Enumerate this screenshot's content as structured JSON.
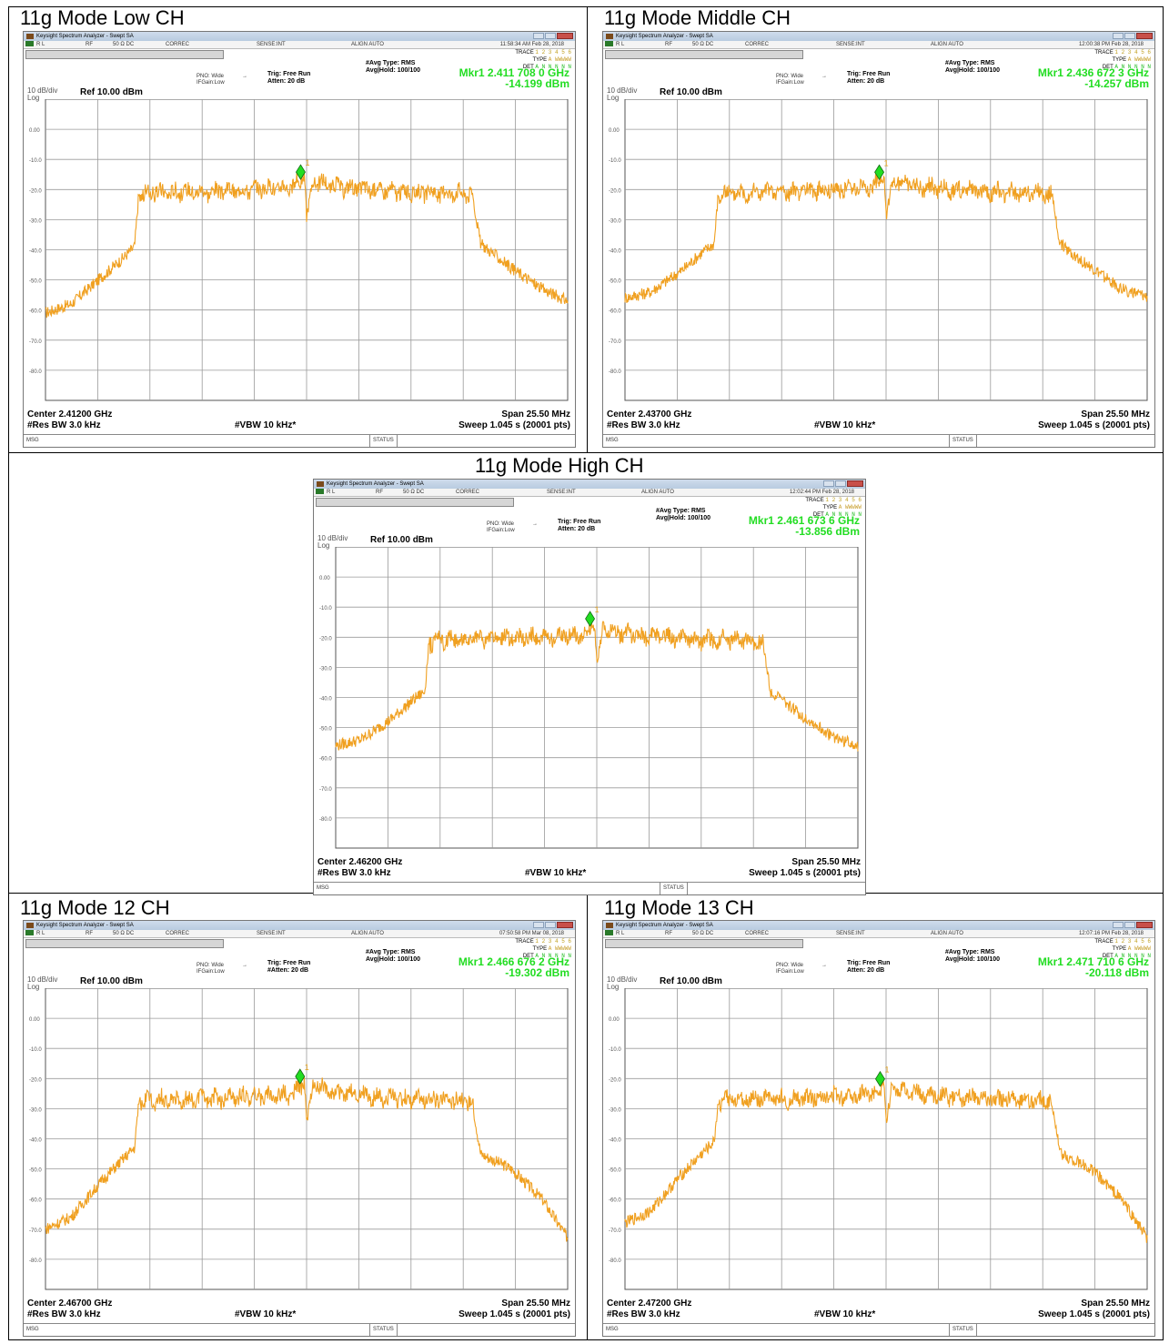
{
  "panels": [
    {
      "title": "11g Mode Low CH",
      "window_title": "Keysight Spectrum Analyzer - Swept SA",
      "status_rl": "R L",
      "status_rf": "RF",
      "status_imp": "50 Ω  DC",
      "status_correc": "CORREC",
      "status_sense": "SENSE:INT",
      "status_align": "ALIGN AUTO",
      "timestamp": "11:58:34 AM Feb 28, 2018",
      "pno": "PNO: Wide",
      "ifgain": "IFGain:Low",
      "trig": "Trig: Free Run",
      "atten": "Atten: 20 dB",
      "avg_type": "#Avg Type: RMS",
      "avg_hold": "Avg|Hold: 100/100",
      "trace_label": "TRACE",
      "trace_nums": "1 2 3 4 5 6",
      "type_label": "TYPE",
      "type_val": "A WWWWW",
      "det_label": "DET",
      "det_val": "A N N N N N",
      "marker_freq": "Mkr1 2.411 708 0 GHz",
      "marker_amp": "-14.199 dBm",
      "scale": "10 dB/div",
      "log": "Log",
      "ref": "Ref 10.00 dBm",
      "center": "Center 2.41200 GHz",
      "res_bw": "#Res BW 3.0 kHz",
      "vbw": "#VBW 10 kHz*",
      "span": "Span 25.50 MHz",
      "sweep": "Sweep  1.045 s (20001 pts)",
      "msg": "MSG",
      "status": "STATUS"
    },
    {
      "title": "11g Mode Middle CH",
      "window_title": "Keysight Spectrum Analyzer - Swept SA",
      "status_rl": "R L",
      "status_rf": "RF",
      "status_imp": "50 Ω  DC",
      "status_correc": "CORREC",
      "status_sense": "SENSE:INT",
      "status_align": "ALIGN AUTO",
      "timestamp": "12:00:38 PM Feb 28, 2018",
      "pno": "PNO: Wide",
      "ifgain": "IFGain:Low",
      "trig": "Trig: Free Run",
      "atten": "Atten: 20 dB",
      "avg_type": "#Avg Type: RMS",
      "avg_hold": "Avg|Hold: 100/100",
      "trace_label": "TRACE",
      "trace_nums": "1 2 3 4 5 6",
      "type_label": "TYPE",
      "type_val": "A WWWWW",
      "det_label": "DET",
      "det_val": "A N N N N N",
      "marker_freq": "Mkr1 2.436 672 3 GHz",
      "marker_amp": "-14.257 dBm",
      "scale": "10 dB/div",
      "log": "Log",
      "ref": "Ref 10.00 dBm",
      "center": "Center 2.43700 GHz",
      "res_bw": "#Res BW 3.0 kHz",
      "vbw": "#VBW 10 kHz*",
      "span": "Span 25.50 MHz",
      "sweep": "Sweep  1.045 s (20001 pts)",
      "msg": "MSG",
      "status": "STATUS"
    },
    {
      "title": "11g Mode High CH",
      "window_title": "Keysight Spectrum Analyzer - Swept SA",
      "status_rl": "R L",
      "status_rf": "RF",
      "status_imp": "50 Ω  DC",
      "status_correc": "CORREC",
      "status_sense": "SENSE:INT",
      "status_align": "ALIGN AUTO",
      "timestamp": "12:02:44 PM Feb 28, 2018",
      "pno": "PNO: Wide",
      "ifgain": "IFGain:Low",
      "trig": "Trig: Free Run",
      "atten": "Atten: 20 dB",
      "avg_type": "#Avg Type: RMS",
      "avg_hold": "Avg|Hold: 100/100",
      "trace_label": "TRACE",
      "trace_nums": "1 2 3 4 5 6",
      "type_label": "TYPE",
      "type_val": "A WWWWW",
      "det_label": "DET",
      "det_val": "A N N N N N",
      "marker_freq": "Mkr1 2.461 673 6 GHz",
      "marker_amp": "-13.856 dBm",
      "scale": "10 dB/div",
      "log": "Log",
      "ref": "Ref 10.00 dBm",
      "center": "Center 2.46200 GHz",
      "res_bw": "#Res BW 3.0 kHz",
      "vbw": "#VBW 10 kHz*",
      "span": "Span 25.50 MHz",
      "sweep": "Sweep  1.045 s (20001 pts)",
      "msg": "MSG",
      "status": "STATUS"
    },
    {
      "title": "11g Mode 12 CH",
      "window_title": "Keysight Spectrum Analyzer - Swept SA",
      "status_rl": "R L",
      "status_rf": "RF",
      "status_imp": "50 Ω  DC",
      "status_correc": "CORREC",
      "status_sense": "SENSE:INT",
      "status_align": "ALIGN AUTO",
      "timestamp": "07:50:58 PM Mar 08, 2018",
      "pno": "PNO: Wide",
      "ifgain": "IFGain:Low",
      "trig": "Trig: Free Run",
      "atten": "#Atten: 20 dB",
      "avg_type": "#Avg Type: RMS",
      "avg_hold": "Avg|Hold: 100/100",
      "trace_label": "TRACE",
      "trace_nums": "1 2 3 4 5 6",
      "type_label": "TYPE",
      "type_val": "A WWWWW",
      "det_label": "DET",
      "det_val": "A N N N N N",
      "marker_freq": "Mkr1 2.466 676 2 GHz",
      "marker_amp": "-19.302 dBm",
      "scale": "10 dB/div",
      "log": "Log",
      "ref": "Ref 10.00 dBm",
      "center": "Center 2.46700 GHz",
      "res_bw": "#Res BW 3.0 kHz",
      "vbw": "#VBW 10 kHz*",
      "span": "Span 25.50 MHz",
      "sweep": "Sweep  1.045 s (20001 pts)",
      "msg": "MSG",
      "status": "STATUS"
    },
    {
      "title": "11g Mode 13 CH",
      "window_title": "Keysight Spectrum Analyzer - Swept SA",
      "status_rl": "R L",
      "status_rf": "RF",
      "status_imp": "50 Ω  DC",
      "status_correc": "CORREC",
      "status_sense": "SENSE:INT",
      "status_align": "ALIGN AUTO",
      "timestamp": "12:07:16 PM Feb 28, 2018",
      "pno": "PNO: Wide",
      "ifgain": "IFGain:Low",
      "trig": "Trig: Free Run",
      "atten": "Atten: 20 dB",
      "avg_type": "#Avg Type: RMS",
      "avg_hold": "Avg|Hold: 100/100",
      "trace_label": "TRACE",
      "trace_nums": "1 2 3 4 5 6",
      "type_label": "TYPE",
      "type_val": "A WWWWW",
      "det_label": "DET",
      "det_val": "A N N N N N",
      "marker_freq": "Mkr1 2.471 710 6 GHz",
      "marker_amp": "-20.118 dBm",
      "scale": "10 dB/div",
      "log": "Log",
      "ref": "Ref 10.00 dBm",
      "center": "Center 2.47200 GHz",
      "res_bw": "#Res BW 3.0 kHz",
      "vbw": "#VBW 10 kHz*",
      "span": "Span 25.50 MHz",
      "sweep": "Sweep  1.045 s (20001 pts)",
      "msg": "MSG",
      "status": "STATUS"
    }
  ],
  "chart_data": [
    {
      "type": "line",
      "title": "11g Mode Low CH",
      "y_unit": "dBm",
      "ylim": [
        -90,
        10
      ],
      "y_ticks": [
        "0.00",
        "-10.0",
        "-20.0",
        "-30.0",
        "-40.0",
        "-50.0",
        "-60.0",
        "-70.0",
        "-80.0"
      ],
      "x_center_ghz": 2.412,
      "x_span_mhz": 25.5,
      "grid": true,
      "trace_color": "#f0a020",
      "series": [
        {
          "x_offset_mhz": [
            -12.75,
            -11.5,
            -10.0,
            -9.0,
            -8.4,
            -8.2,
            -7.5,
            -4.0,
            -0.6,
            -0.1,
            0.0,
            0.3,
            1.5,
            5.0,
            7.5,
            8.1,
            8.5,
            10.0,
            11.5,
            12.75
          ],
          "y_dbm": [
            -61,
            -58,
            -49,
            -43,
            -39,
            -22,
            -21,
            -20.5,
            -19,
            -16,
            -29,
            -17,
            -19,
            -21,
            -21,
            -22,
            -38,
            -46,
            -53,
            -57
          ]
        }
      ],
      "marker": {
        "label": "1",
        "x_offset_mhz": -0.29,
        "y_dbm": -14.199
      }
    },
    {
      "type": "line",
      "title": "11g Mode Middle CH",
      "y_unit": "dBm",
      "ylim": [
        -90,
        10
      ],
      "y_ticks": [
        "0.00",
        "-10.0",
        "-20.0",
        "-30.0",
        "-40.0",
        "-50.0",
        "-60.0",
        "-70.0",
        "-80.0"
      ],
      "x_center_ghz": 2.437,
      "x_span_mhz": 25.5,
      "grid": true,
      "trace_color": "#f0a020",
      "series": [
        {
          "x_offset_mhz": [
            -12.75,
            -11.5,
            -10.0,
            -9.0,
            -8.4,
            -8.2,
            -7.5,
            -4.0,
            -0.6,
            -0.1,
            0.0,
            0.3,
            1.5,
            5.0,
            7.5,
            8.1,
            8.5,
            10.0,
            11.5,
            12.75
          ],
          "y_dbm": [
            -56,
            -54,
            -47,
            -41,
            -38,
            -22,
            -21,
            -20.5,
            -19,
            -16,
            -29,
            -17,
            -19,
            -21,
            -21,
            -22,
            -38,
            -46,
            -53,
            -56
          ]
        }
      ],
      "marker": {
        "label": "1",
        "x_offset_mhz": -0.33,
        "y_dbm": -14.257
      }
    },
    {
      "type": "line",
      "title": "11g Mode High CH",
      "y_unit": "dBm",
      "ylim": [
        -90,
        10
      ],
      "y_ticks": [
        "0.00",
        "-10.0",
        "-20.0",
        "-30.0",
        "-40.0",
        "-50.0",
        "-60.0",
        "-70.0",
        "-80.0"
      ],
      "x_center_ghz": 2.462,
      "x_span_mhz": 25.5,
      "grid": true,
      "trace_color": "#f0a020",
      "series": [
        {
          "x_offset_mhz": [
            -12.75,
            -11.5,
            -10.0,
            -9.0,
            -8.4,
            -8.2,
            -7.5,
            -4.0,
            -0.6,
            -0.1,
            0.0,
            0.3,
            1.5,
            5.0,
            7.5,
            8.1,
            8.5,
            10.0,
            11.5,
            12.75
          ],
          "y_dbm": [
            -56,
            -54,
            -47,
            -41,
            -38,
            -22,
            -21,
            -20.5,
            -19,
            -16,
            -29,
            -17,
            -19,
            -21,
            -21,
            -22,
            -38,
            -46,
            -53,
            -56
          ]
        }
      ],
      "marker": {
        "label": "1",
        "x_offset_mhz": -0.33,
        "y_dbm": -13.856
      }
    },
    {
      "type": "line",
      "title": "11g Mode 12 CH",
      "y_unit": "dBm",
      "ylim": [
        -90,
        10
      ],
      "y_ticks": [
        "0.00",
        "-10.0",
        "-20.0",
        "-30.0",
        "-40.0",
        "-50.0",
        "-60.0",
        "-70.0",
        "-80.0"
      ],
      "x_center_ghz": 2.467,
      "x_span_mhz": 25.5,
      "grid": true,
      "trace_color": "#f0a020",
      "series": [
        {
          "x_offset_mhz": [
            -12.75,
            -11.5,
            -10.0,
            -9.0,
            -8.4,
            -8.2,
            -7.5,
            -4.0,
            -0.6,
            -0.1,
            0.0,
            0.3,
            1.5,
            5.0,
            7.5,
            8.1,
            8.5,
            10.0,
            11.5,
            12.75
          ],
          "y_dbm": [
            -70,
            -66,
            -54,
            -47,
            -43,
            -28,
            -27,
            -26.5,
            -25,
            -21,
            -35,
            -22,
            -25,
            -27,
            -27,
            -28,
            -45,
            -50,
            -60,
            -73
          ]
        }
      ],
      "marker": {
        "label": "1",
        "x_offset_mhz": -0.32,
        "y_dbm": -19.302
      }
    },
    {
      "type": "line",
      "title": "11g Mode 13 CH",
      "y_unit": "dBm",
      "ylim": [
        -90,
        10
      ],
      "y_ticks": [
        "0.00",
        "-10.0",
        "-20.0",
        "-30.0",
        "-40.0",
        "-50.0",
        "-60.0",
        "-70.0",
        "-80.0"
      ],
      "x_center_ghz": 2.472,
      "x_span_mhz": 25.5,
      "grid": true,
      "trace_color": "#f0a020",
      "series": [
        {
          "x_offset_mhz": [
            -12.75,
            -11.5,
            -10.0,
            -9.0,
            -8.4,
            -8.2,
            -7.5,
            -4.0,
            -0.6,
            -0.1,
            0.0,
            0.3,
            1.5,
            5.0,
            7.5,
            8.1,
            8.5,
            10.0,
            11.5,
            12.75
          ],
          "y_dbm": [
            -68,
            -64,
            -52,
            -45,
            -41,
            -28,
            -27,
            -26.5,
            -25,
            -22,
            -34,
            -23,
            -25,
            -27,
            -27,
            -28,
            -45,
            -50,
            -60,
            -73
          ]
        }
      ],
      "marker": {
        "label": "1",
        "x_offset_mhz": -0.29,
        "y_dbm": -20.118
      }
    }
  ]
}
